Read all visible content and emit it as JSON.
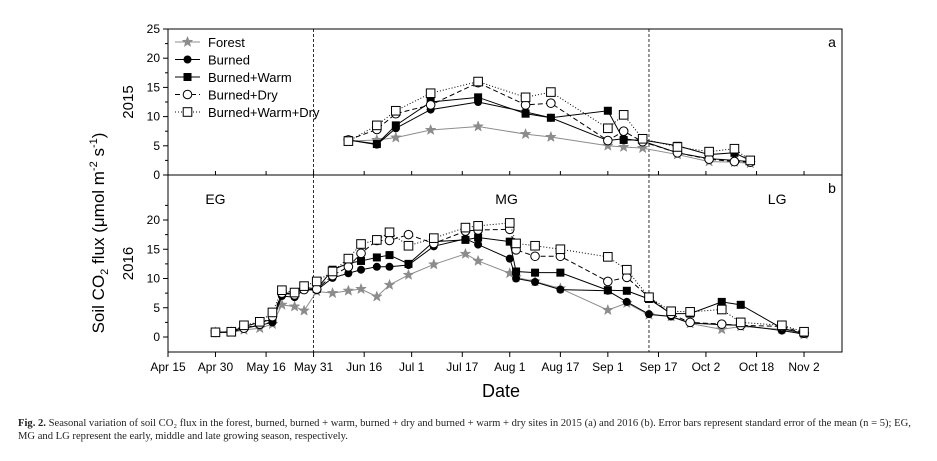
{
  "chart_data": {
    "type": "line",
    "ylabel": "Soil CO₂ flux (μmol m⁻² s⁻¹)",
    "xlabel": "Date",
    "x_tick_labels": [
      "Apr 15",
      "Apr 30",
      "May 16",
      "May 31",
      "Jun 16",
      "Jul 1",
      "Jul 17",
      "Aug 1",
      "Aug 17",
      "Sep 1",
      "Sep 17",
      "Oct 2",
      "Oct 18",
      "Nov 2"
    ],
    "x_tick_days": [
      105,
      120,
      136,
      151,
      167,
      182,
      198,
      213,
      229,
      244,
      260,
      275,
      291,
      306
    ],
    "xlim": [
      105,
      318
    ],
    "season_boundaries_day": [
      151,
      257
    ],
    "season_labels": [
      "EG",
      "MG",
      "LG"
    ],
    "series_styles": {
      "Forest": {
        "color": "#8c8c8c",
        "marker": "star",
        "dash": ""
      },
      "Burned": {
        "color": "#000000",
        "marker": "filled-circle",
        "dash": ""
      },
      "Burned+Warm": {
        "color": "#000000",
        "marker": "filled-square",
        "dash": ""
      },
      "Burned+Dry": {
        "color": "#000000",
        "marker": "open-circle",
        "dash": "5,3"
      },
      "Burned+Warm+Dry": {
        "color": "#000000",
        "marker": "open-square",
        "dash": "1,2"
      }
    },
    "panels": [
      {
        "row_label": "2015",
        "panel_letter": "a",
        "ylim": [
          0,
          25
        ],
        "yticks": [
          "0",
          "5",
          "10",
          "15",
          "20",
          "25"
        ],
        "legend": [
          "Forest",
          "Burned",
          "Burned+Warm",
          "Burned+Dry",
          "Burned+Warm+Dry"
        ],
        "x": [
          162,
          171,
          177,
          188,
          203,
          218,
          226,
          244,
          249,
          255,
          266,
          276,
          284,
          289
        ],
        "series": [
          {
            "name": "Forest",
            "values": [
              5.8,
              6.0,
              6.4,
              7.7,
              8.3,
              7.0,
              6.5,
              5.0,
              4.8,
              4.6,
              3.5,
              2.3,
              2.2,
              2.0
            ]
          },
          {
            "name": "Burned",
            "values": [
              6.0,
              5.2,
              8.0,
              11.2,
              12.5,
              10.8,
              9.8,
              5.9,
              6.2,
              5.8,
              3.8,
              2.8,
              2.5,
              2.3
            ]
          },
          {
            "name": "Burned+Warm",
            "values": [
              6.0,
              5.3,
              8.5,
              12.5,
              13.3,
              10.5,
              9.8,
              11.0,
              6.0,
              6.0,
              5.0,
              3.5,
              3.8,
              2.5
            ]
          },
          {
            "name": "Burned+Dry",
            "values": [
              6.0,
              7.8,
              10.5,
              12.0,
              15.8,
              12.0,
              12.3,
              5.9,
              7.5,
              5.7,
              3.8,
              2.7,
              2.3,
              2.2
            ]
          },
          {
            "name": "Burned+Warm+Dry",
            "values": [
              5.8,
              8.5,
              11.0,
              14.0,
              16.0,
              13.3,
              14.2,
              8.0,
              10.3,
              6.2,
              4.8,
              4.0,
              4.5,
              2.5
            ]
          }
        ]
      },
      {
        "row_label": "2016",
        "panel_letter": "b",
        "ylim": [
          0,
          25
        ],
        "yticks": [
          "0",
          "5",
          "10",
          "15",
          "20"
        ],
        "legend": [],
        "x": [
          120,
          125,
          129,
          134,
          138,
          141,
          145,
          148,
          152,
          157,
          162,
          166,
          171,
          175,
          181,
          189,
          199,
          203,
          213,
          215,
          221,
          229,
          244,
          250,
          257,
          264,
          270,
          280,
          286,
          299,
          306
        ],
        "series": [
          {
            "name": "Forest",
            "values": [
              0.8,
              0.8,
              1.2,
              1.5,
              2.2,
              5.5,
              5.2,
              4.5,
              7.8,
              7.5,
              7.9,
              8.2,
              6.9,
              8.9,
              10.6,
              12.4,
              14.2,
              13.0,
              10.9,
              10.2,
              9.5,
              8.3,
              4.6,
              5.8,
              3.8,
              3.5,
              2.3,
              1.3,
              1.8,
              1.3,
              0.4
            ]
          },
          {
            "name": "Burned",
            "values": [
              0.8,
              0.8,
              1.5,
              2.0,
              2.5,
              7.0,
              6.8,
              8.1,
              8.0,
              10.1,
              10.9,
              11.5,
              12.0,
              12.0,
              12.3,
              15.5,
              16.8,
              15.8,
              13.4,
              10.0,
              9.4,
              8.1,
              7.9,
              6.0,
              3.9,
              3.5,
              2.4,
              2.1,
              2.0,
              1.1,
              0.5
            ]
          },
          {
            "name": "Burned+Warm",
            "values": [
              0.8,
              0.9,
              1.8,
              2.5,
              3.0,
              7.5,
              7.5,
              8.5,
              8.2,
              11.5,
              12.6,
              13.0,
              13.6,
              14.0,
              12.5,
              16.3,
              16.6,
              17.0,
              16.3,
              11.2,
              11.0,
              11.0,
              8.0,
              7.9,
              6.5,
              4.0,
              4.0,
              6.0,
              5.5,
              1.5,
              0.6
            ]
          },
          {
            "name": "Burned+Dry",
            "values": [
              0.8,
              0.9,
              1.5,
              2.2,
              3.5,
              7.5,
              7.2,
              8.1,
              8.2,
              10.5,
              12.0,
              14.3,
              16.5,
              16.5,
              17.5,
              16.0,
              18.1,
              18.3,
              18.4,
              14.9,
              13.8,
              13.8,
              9.5,
              10.2,
              6.8,
              3.9,
              2.5,
              2.2,
              2.0,
              1.8,
              0.7
            ]
          },
          {
            "name": "Burned+Warm+Dry",
            "values": [
              0.8,
              0.9,
              2.0,
              2.6,
              4.2,
              8.0,
              7.6,
              8.7,
              9.5,
              11.2,
              13.4,
              15.9,
              16.6,
              17.9,
              15.6,
              16.9,
              18.7,
              19.0,
              19.5,
              16.0,
              15.6,
              15.0,
              13.7,
              11.5,
              6.8,
              4.4,
              4.3,
              4.7,
              2.5,
              2.0,
              0.9
            ]
          }
        ]
      }
    ]
  },
  "caption": {
    "prefix": "Fig. 2.",
    "text": " Seasonal variation of soil CO₂ flux in the forest, burned, burned + warm, burned + dry and burned + warm + dry sites in 2015 (a) and 2016 (b). Error bars represent standard error of the mean (n = 5); EG, MG and LG represent the early, middle and late growing season, respectively."
  }
}
